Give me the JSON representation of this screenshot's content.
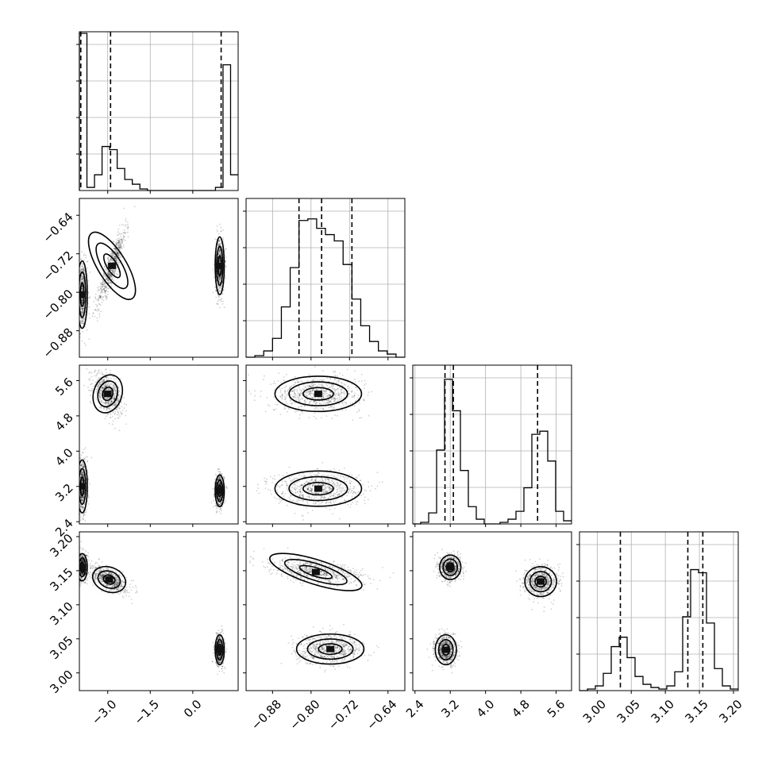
{
  "chart_data": {
    "type": "corner",
    "parameters": [
      {
        "ticks": [
          -3.0,
          -1.5,
          0.0
        ],
        "tick_labels": [
          "−3.0",
          "−1.5",
          "0.0"
        ],
        "range": [
          -4.0,
          1.6
        ]
      },
      {
        "ticks": [
          -0.88,
          -0.8,
          -0.72,
          -0.64
        ],
        "tick_labels": [
          "−0.88",
          "−0.80",
          "−0.72",
          "−0.64"
        ],
        "range": [
          -0.935,
          -0.605
        ]
      },
      {
        "ticks": [
          2.4,
          3.2,
          4.0,
          4.8,
          5.6
        ],
        "tick_labels": [
          "2.4",
          "3.2",
          "4.0",
          "4.8",
          "5.6"
        ],
        "range": [
          2.35,
          5.95
        ]
      },
      {
        "ticks": [
          3.0,
          3.05,
          3.1,
          3.15,
          3.2
        ],
        "tick_labels": [
          "3.00",
          "3.05",
          "3.10",
          "3.15",
          "3.20"
        ],
        "range": [
          2.974,
          3.207
        ]
      }
    ],
    "histograms": [
      {
        "bins_edges": [
          -4.0,
          1.6
        ],
        "values": [
          100,
          2,
          10,
          28,
          26,
          14,
          7,
          4,
          1,
          0,
          0,
          0,
          0,
          0,
          0,
          0,
          0,
          0,
          2,
          80,
          10
        ],
        "quantiles": [
          -3.95,
          -2.9,
          1.0
        ]
      },
      {
        "values": [
          0,
          1,
          4,
          12,
          32,
          57,
          87,
          88,
          82,
          78,
          74,
          59,
          37,
          20,
          10,
          4,
          2,
          0
        ],
        "quantiles": [
          -0.825,
          -0.778,
          -0.715
        ]
      },
      {
        "values": [
          0,
          1,
          7,
          47,
          92,
          72,
          34,
          11,
          3,
          0,
          0,
          1,
          3,
          8,
          23,
          57,
          59,
          40,
          8,
          2
        ],
        "quantiles": [
          3.08,
          3.27,
          5.18
        ]
      },
      {
        "values": [
          0,
          1,
          3,
          11,
          28,
          34,
          21,
          9,
          4,
          2,
          1,
          3,
          12,
          47,
          77,
          75,
          43,
          14,
          3,
          1
        ],
        "quantiles": [
          3.034,
          3.133,
          3.155
        ]
      }
    ],
    "pairs": [
      {
        "row": 1,
        "col": 0,
        "clusters": [
          {
            "x": -3.9,
            "y": -0.805,
            "sx": 0.09,
            "sy": 0.035,
            "rho": 0
          },
          {
            "x": -2.85,
            "y": -0.745,
            "sx": 0.25,
            "sy": 0.04,
            "rho": 0.9
          },
          {
            "x": 0.95,
            "y": -0.745,
            "sx": 0.08,
            "sy": 0.03,
            "rho": 0
          }
        ]
      },
      {
        "row": 2,
        "col": 0,
        "clusters": [
          {
            "x": -3.9,
            "y": 3.2,
            "sx": 0.09,
            "sy": 0.3,
            "rho": 0
          },
          {
            "x": -3.0,
            "y": 5.3,
            "sx": 0.25,
            "sy": 0.22,
            "rho": -0.5
          },
          {
            "x": 0.95,
            "y": 3.1,
            "sx": 0.08,
            "sy": 0.18,
            "rho": 0
          }
        ]
      },
      {
        "row": 2,
        "col": 1,
        "clusters": [
          {
            "x": -0.785,
            "y": 5.3,
            "sx": 0.045,
            "sy": 0.2,
            "rho": 0
          },
          {
            "x": -0.785,
            "y": 3.15,
            "sx": 0.045,
            "sy": 0.2,
            "rho": 0
          }
        ]
      },
      {
        "row": 3,
        "col": 0,
        "clusters": [
          {
            "x": -3.9,
            "y": 3.155,
            "sx": 0.09,
            "sy": 0.01,
            "rho": 0
          },
          {
            "x": -2.95,
            "y": 3.137,
            "sx": 0.3,
            "sy": 0.009,
            "rho": -0.6
          },
          {
            "x": 0.95,
            "y": 3.034,
            "sx": 0.08,
            "sy": 0.011,
            "rho": 0
          }
        ]
      },
      {
        "row": 3,
        "col": 1,
        "clusters": [
          {
            "x": -0.79,
            "y": 3.148,
            "sx": 0.05,
            "sy": 0.009,
            "rho": -0.5
          },
          {
            "x": -0.76,
            "y": 3.035,
            "sx": 0.035,
            "sy": 0.011,
            "rho": 0
          }
        ]
      },
      {
        "row": 3,
        "col": 2,
        "clusters": [
          {
            "x": 3.2,
            "y": 3.155,
            "sx": 0.12,
            "sy": 0.009,
            "rho": 0
          },
          {
            "x": 5.25,
            "y": 3.134,
            "sx": 0.18,
            "sy": 0.011,
            "rho": 0
          },
          {
            "x": 3.1,
            "y": 3.034,
            "sx": 0.12,
            "sy": 0.011,
            "rho": 0
          }
        ]
      }
    ],
    "grid": true,
    "title": "",
    "xlabel": "",
    "ylabel": ""
  }
}
